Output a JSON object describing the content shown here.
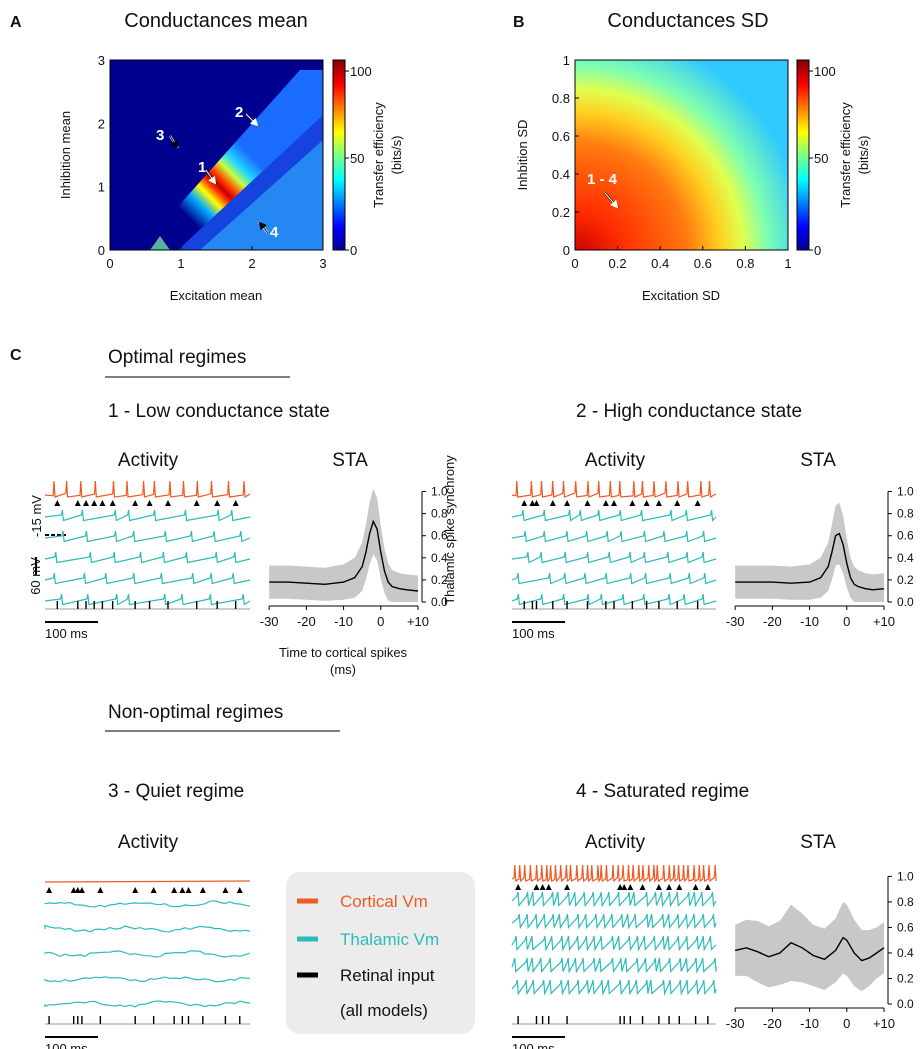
{
  "colors": {
    "cortical": "#f05a22",
    "thalamic": "#2bbbbb",
    "retinal": "#000000",
    "sta_band": "#c8c8c8",
    "legend_bg": "#ececec"
  },
  "panel_labels": {
    "a": "A",
    "b": "B",
    "c": "C"
  },
  "heatmaps": {
    "A": {
      "type": "heatmap",
      "title": "Conductances mean",
      "xlabel": "Excitation mean",
      "ylabel": "Inhibition mean",
      "xlim": [
        0,
        3
      ],
      "ylim": [
        0,
        3
      ],
      "xticks": [
        "0",
        "1",
        "2",
        "3"
      ],
      "yticks": [
        "0",
        "1",
        "2",
        "3"
      ],
      "colorbar": {
        "label_line1": "Transfer efficiency",
        "label_line2": "(bits/s)",
        "range": [
          0,
          100
        ],
        "ticks": [
          "100",
          "50",
          "0"
        ]
      },
      "pattern": "diagonal ridge: high efficiency where inhibition mean ≈ excitation mean − 0.5",
      "markers": [
        {
          "label": "1",
          "x": 1.5,
          "y": 0.95,
          "arrow": "white"
        },
        {
          "label": "2",
          "x": 2.05,
          "y": 1.75,
          "arrow": "white"
        },
        {
          "label": "3",
          "x": 0.95,
          "y": 1.45,
          "arrow": "black"
        },
        {
          "label": "4",
          "x": 2.05,
          "y": 0.5,
          "arrow": "black"
        }
      ]
    },
    "B": {
      "type": "heatmap",
      "title": "Conductances SD",
      "xlabel": "Excitation SD",
      "ylabel": "Inhbition SD",
      "xlim": [
        0,
        1
      ],
      "ylim": [
        0,
        1
      ],
      "xticks": [
        "0",
        "0.2",
        "0.4",
        "0.6",
        "0.8",
        "1"
      ],
      "yticks": [
        "0",
        "0.2",
        "0.4",
        "0.6",
        "0.8",
        "1"
      ],
      "colorbar": {
        "label_line1": "Transfer efficiency",
        "label_line2": "(bits/s)",
        "range": [
          0,
          100
        ],
        "ticks": [
          "100",
          "50",
          "0"
        ]
      },
      "pattern": "efficiency highest at low excitation SD, decreasing radially outward",
      "markers": [
        {
          "label": "1 - 4",
          "x": 0.22,
          "y": 0.22,
          "arrow": "white"
        }
      ]
    }
  },
  "section_c": {
    "optimal_heading": "Optimal regimes",
    "nonoptimal_heading": "Non-optimal regimes",
    "regimes": [
      {
        "id": "1",
        "title": "1 - Low conductance state",
        "activity_label": "Activity",
        "sta_label": "STA"
      },
      {
        "id": "2",
        "title": "2 - High conductance state",
        "activity_label": "Activity",
        "sta_label": "STA"
      },
      {
        "id": "3",
        "title": "3 - Quiet regime",
        "activity_label": "Activity"
      },
      {
        "id": "4",
        "title": "4 - Saturated regime",
        "activity_label": "Activity",
        "sta_label": "STA"
      }
    ],
    "scalebar_time": "100 ms",
    "scalebar_voltage": "60 mV",
    "voltage_level": "-15 mV",
    "sta_ylabel": "Thalamic spike synchrony",
    "sta_xlabel_line1": "Time to cortical spikes",
    "sta_xlabel_line2": "(ms)"
  },
  "legend": {
    "cortical": "Cortical Vm",
    "thalamic": "Thalamic Vm",
    "retinal": "Retinal input",
    "note": "(all models)"
  },
  "chart_data": [
    {
      "type": "line",
      "title": "STA",
      "regime": "1 - Low conductance state",
      "x": [
        -30,
        -25,
        -20,
        -15,
        -10,
        -7,
        -5,
        -4,
        -3,
        -2,
        -1,
        0,
        1,
        2,
        3,
        5,
        7,
        10
      ],
      "series": [
        {
          "values": [
            0.18,
            0.18,
            0.17,
            0.16,
            0.18,
            0.22,
            0.32,
            0.45,
            0.62,
            0.73,
            0.66,
            0.45,
            0.28,
            0.18,
            0.14,
            0.12,
            0.11,
            0.1
          ]
        }
      ],
      "band_half_width": [
        0.15,
        0.15,
        0.15,
        0.15,
        0.16,
        0.18,
        0.22,
        0.25,
        0.28,
        0.3,
        0.28,
        0.24,
        0.2,
        0.17,
        0.15,
        0.14,
        0.14,
        0.14
      ],
      "xticks": [
        "-30",
        "-20",
        "-10",
        "0",
        "+10"
      ],
      "yticks": [
        "0.0",
        "0.2",
        "0.4",
        "0.6",
        "0.8",
        "1.0"
      ],
      "xlim": [
        -33,
        10
      ],
      "ylim": [
        0,
        1.05
      ]
    },
    {
      "type": "line",
      "title": "STA",
      "regime": "2 - High conductance state",
      "x": [
        -30,
        -25,
        -20,
        -15,
        -10,
        -7,
        -5,
        -4,
        -3,
        -2,
        -1,
        0,
        1,
        2,
        3,
        5,
        7,
        10
      ],
      "series": [
        {
          "values": [
            0.18,
            0.18,
            0.18,
            0.17,
            0.18,
            0.22,
            0.32,
            0.45,
            0.6,
            0.62,
            0.52,
            0.35,
            0.22,
            0.16,
            0.14,
            0.12,
            0.11,
            0.12
          ]
        }
      ],
      "band_half_width": [
        0.15,
        0.15,
        0.15,
        0.15,
        0.16,
        0.18,
        0.22,
        0.25,
        0.27,
        0.28,
        0.26,
        0.22,
        0.18,
        0.16,
        0.15,
        0.14,
        0.14,
        0.14
      ],
      "xticks": [
        "-30",
        "-20",
        "-10",
        "0",
        "+10"
      ],
      "yticks": [
        "0.0",
        "0.2",
        "0.4",
        "0.6",
        "0.8",
        "1.0"
      ],
      "xlim": [
        -33,
        10
      ],
      "ylim": [
        0,
        1.05
      ]
    },
    {
      "type": "line",
      "title": "STA",
      "regime": "4 - Saturated regime",
      "x": [
        -30,
        -27,
        -24,
        -21,
        -18,
        -15,
        -12,
        -9,
        -6,
        -3,
        -1,
        0,
        2,
        4,
        6,
        8,
        10
      ],
      "series": [
        {
          "values": [
            0.42,
            0.44,
            0.41,
            0.37,
            0.4,
            0.48,
            0.44,
            0.38,
            0.35,
            0.42,
            0.52,
            0.5,
            0.4,
            0.34,
            0.36,
            0.4,
            0.44
          ]
        }
      ],
      "band_half_width": [
        0.2,
        0.22,
        0.24,
        0.24,
        0.25,
        0.3,
        0.27,
        0.24,
        0.24,
        0.25,
        0.28,
        0.28,
        0.26,
        0.24,
        0.22,
        0.2,
        0.2
      ],
      "xticks": [
        "-30",
        "-20",
        "-10",
        "0",
        "+10"
      ],
      "yticks": [
        "0.0",
        "0.2",
        "0.4",
        "0.6",
        "0.8",
        "1.0"
      ],
      "xlim": [
        -33,
        10
      ],
      "ylim": [
        0,
        1.05
      ]
    }
  ]
}
